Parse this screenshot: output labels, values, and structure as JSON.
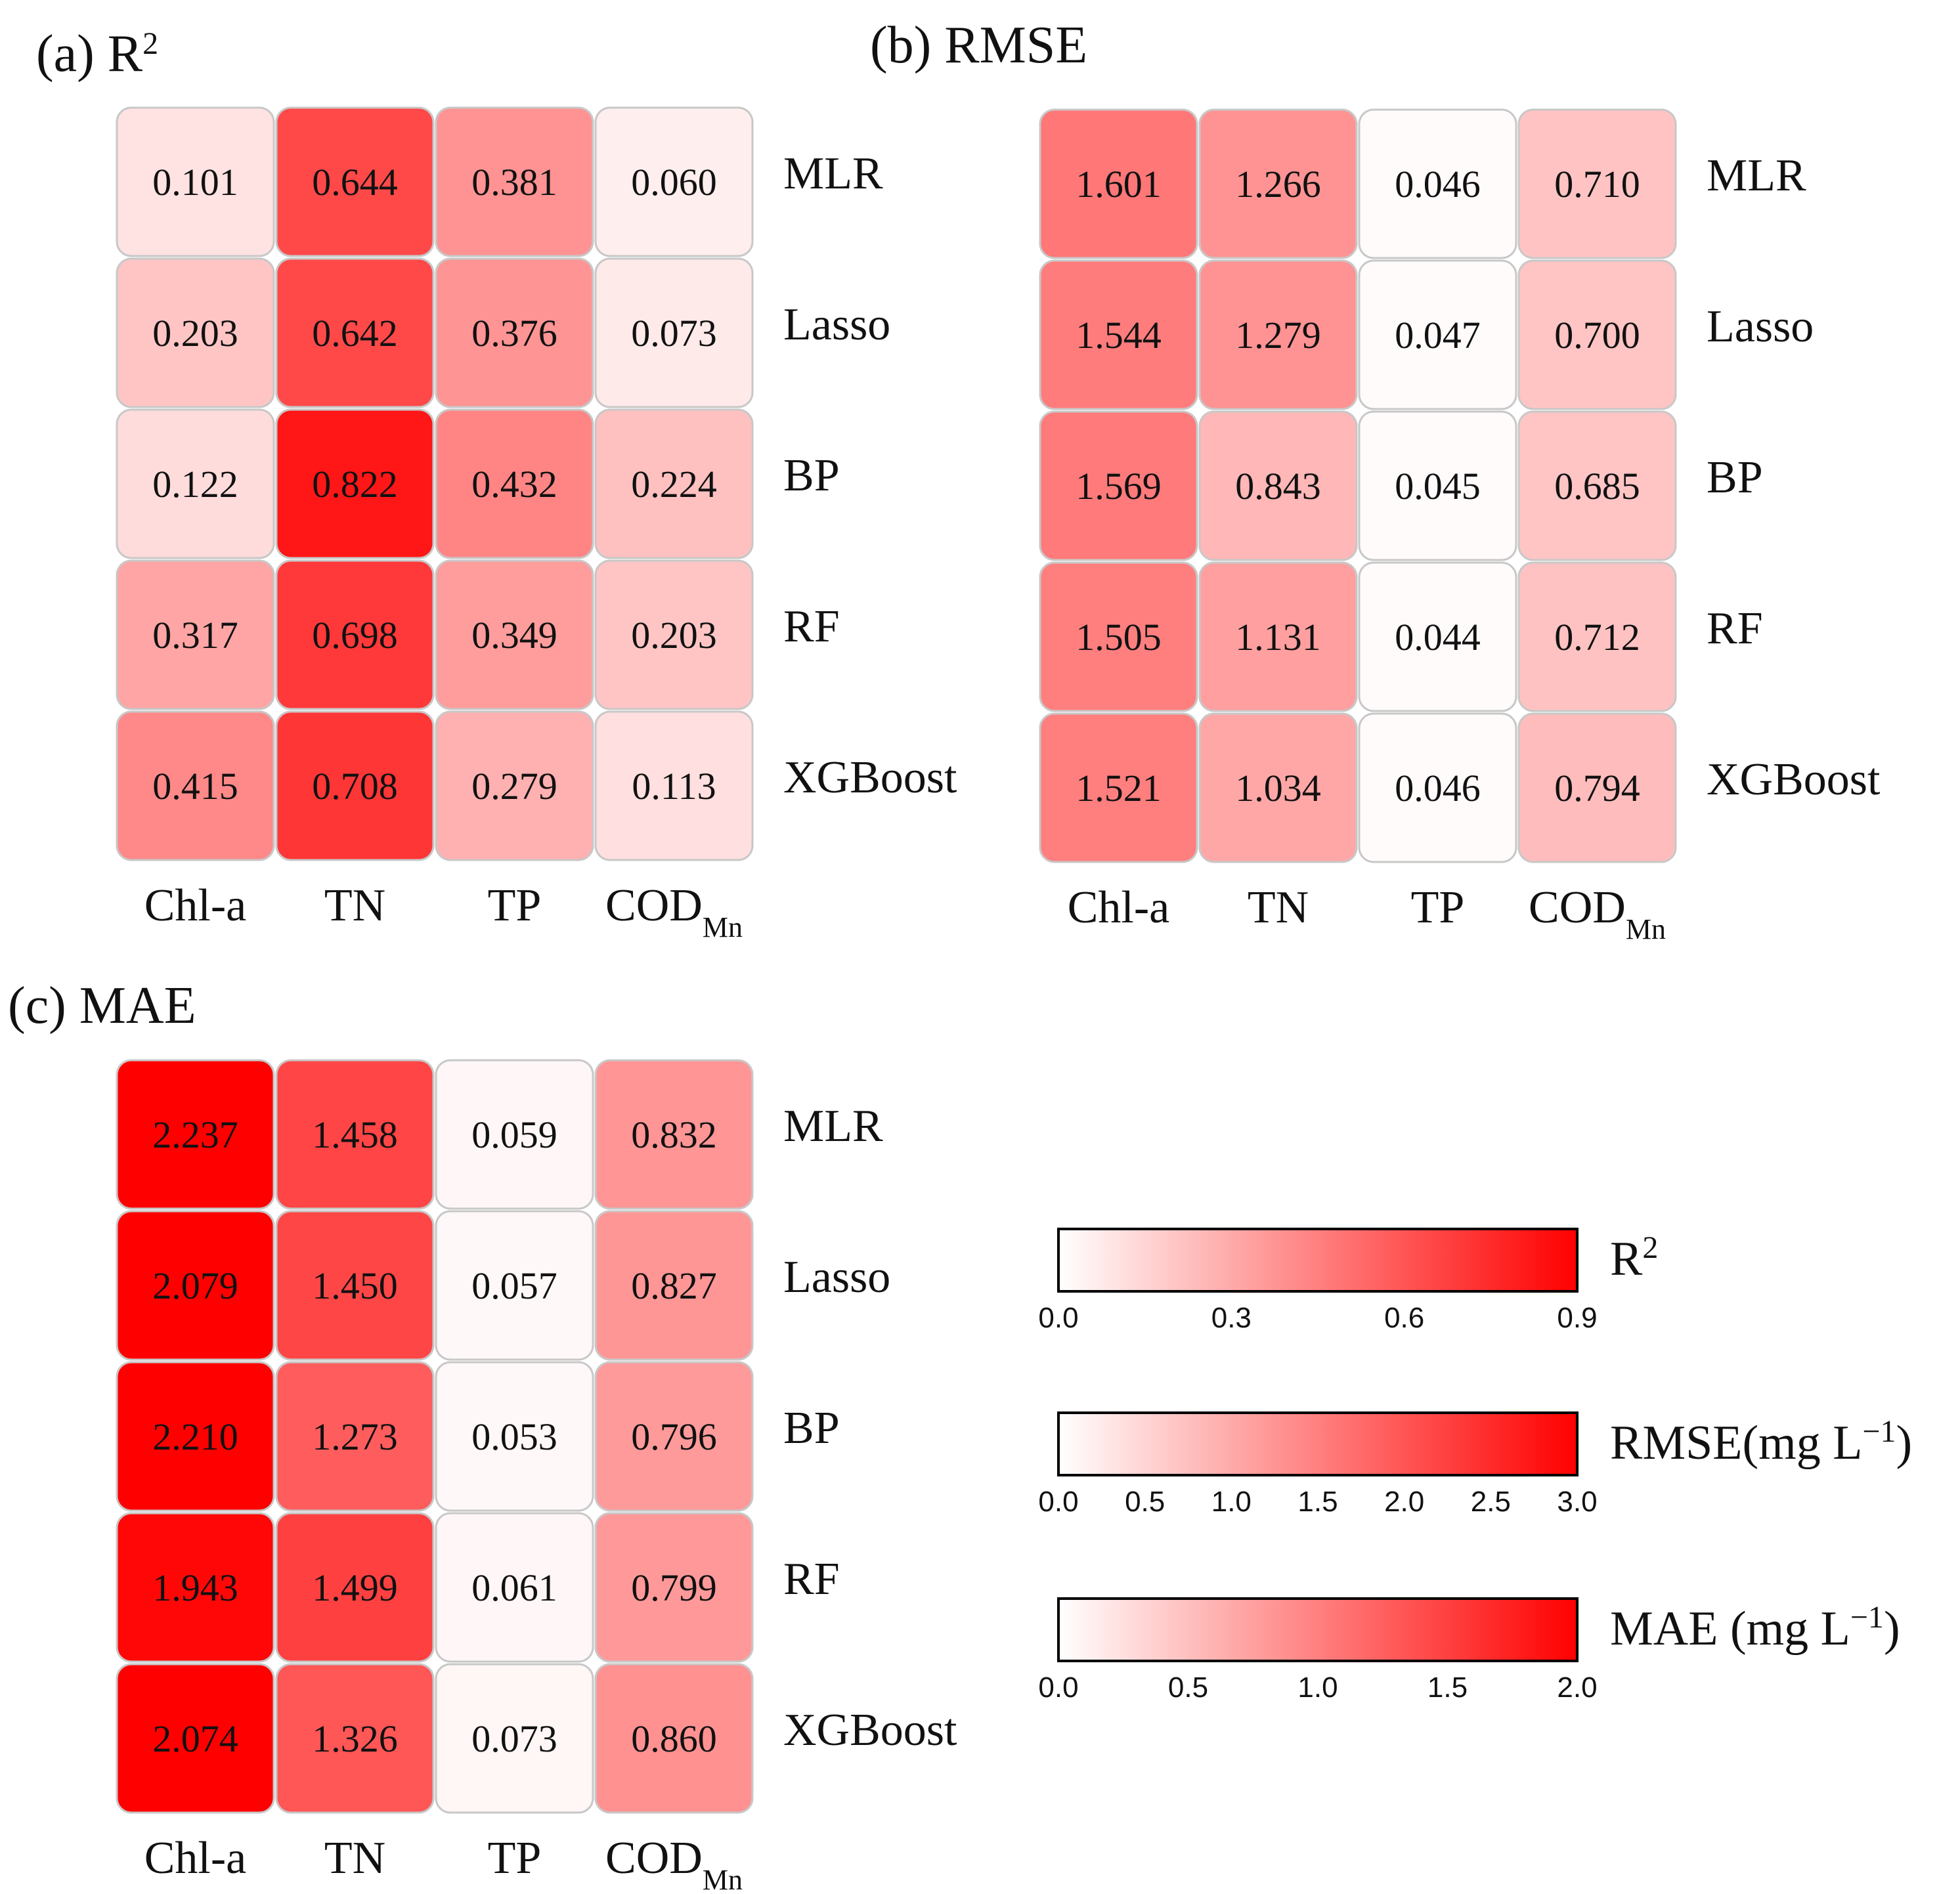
{
  "chart_data": [
    {
      "type": "heatmap",
      "panel": "(a)",
      "metric": "R",
      "metric_sup": "2",
      "columns": [
        "Chl-a",
        "TN",
        "TP",
        "COD"
      ],
      "column_subscripts": [
        "",
        "",
        "",
        "Mn"
      ],
      "rows": [
        "MLR",
        "Lasso",
        "BP",
        "RF",
        "XGBoost"
      ],
      "values": [
        [
          "0.101",
          "0.644",
          "0.381",
          "0.060"
        ],
        [
          "0.203",
          "0.642",
          "0.376",
          "0.073"
        ],
        [
          "0.122",
          "0.822",
          "0.432",
          "0.224"
        ],
        [
          "0.317",
          "0.698",
          "0.349",
          "0.203"
        ],
        [
          "0.415",
          "0.708",
          "0.279",
          "0.113"
        ]
      ],
      "color_range": [
        0,
        0.9
      ]
    },
    {
      "type": "heatmap",
      "panel": "(b)",
      "metric": "RMSE",
      "metric_sup": "",
      "columns": [
        "Chl-a",
        "TN",
        "TP",
        "COD"
      ],
      "column_subscripts": [
        "",
        "",
        "",
        "Mn"
      ],
      "rows": [
        "MLR",
        "Lasso",
        "BP",
        "RF",
        "XGBoost"
      ],
      "values": [
        [
          "1.601",
          "1.266",
          "0.046",
          "0.710"
        ],
        [
          "1.544",
          "1.279",
          "0.047",
          "0.700"
        ],
        [
          "1.569",
          "0.843",
          "0.045",
          "0.685"
        ],
        [
          "1.505",
          "1.131",
          "0.044",
          "0.712"
        ],
        [
          "1.521",
          "1.034",
          "0.046",
          "0.794"
        ]
      ],
      "color_range": [
        0,
        3.0
      ]
    },
    {
      "type": "heatmap",
      "panel": "(c)",
      "metric": "MAE",
      "metric_sup": "",
      "columns": [
        "Chl-a",
        "TN",
        "TP",
        "COD"
      ],
      "column_subscripts": [
        "",
        "",
        "",
        "Mn"
      ],
      "rows": [
        "MLR",
        "Lasso",
        "BP",
        "RF",
        "XGBoost"
      ],
      "values": [
        [
          "2.237",
          "1.458",
          "0.059",
          "0.832"
        ],
        [
          "2.079",
          "1.450",
          "0.057",
          "0.827"
        ],
        [
          "2.210",
          "1.273",
          "0.053",
          "0.796"
        ],
        [
          "1.943",
          "1.499",
          "0.061",
          "0.799"
        ],
        [
          "2.074",
          "1.326",
          "0.073",
          "0.860"
        ]
      ],
      "color_range": [
        0,
        2.0
      ]
    }
  ],
  "colorbars": [
    {
      "label": "R",
      "label_sup": "2",
      "label_tail": "",
      "ticks": [
        "0.0",
        "0.3",
        "0.6",
        "0.9"
      ]
    },
    {
      "label": "RMSE(mg L",
      "label_sup": "−1",
      "label_tail": ")",
      "ticks": [
        "0.0",
        "0.5",
        "1.0",
        "1.5",
        "2.0",
        "2.5",
        "3.0"
      ]
    },
    {
      "label": "MAE (mg L",
      "label_sup": "−1",
      "label_tail": ")",
      "ticks": [
        "0.0",
        "0.5",
        "1.0",
        "1.5",
        "2.0"
      ]
    }
  ],
  "colors": {
    "low": "#ffffff",
    "high": "#ff0000",
    "cell_border": "#c8c8c8"
  }
}
